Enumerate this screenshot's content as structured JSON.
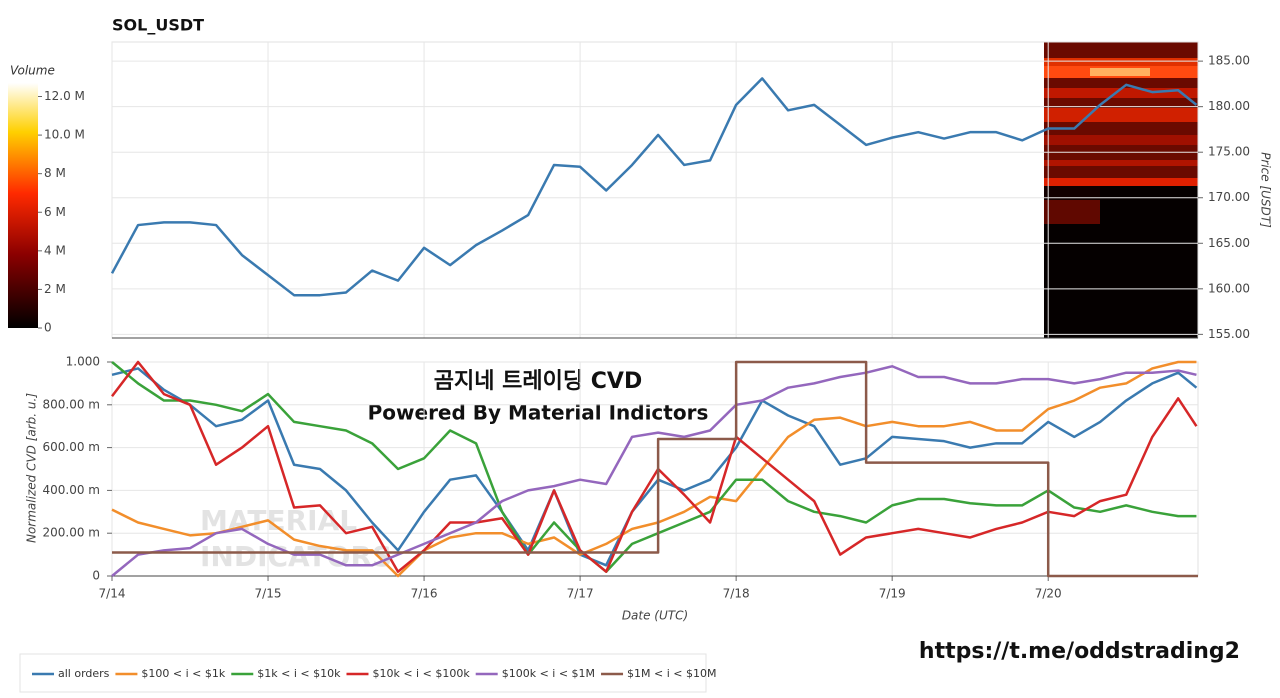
{
  "chart_data": [
    {
      "type": "line",
      "title": "SOL_USDT",
      "y_label": "Price [USDT]",
      "yaxis_side": "right",
      "x": [
        0,
        0.167,
        0.333,
        0.5,
        0.667,
        0.833,
        1,
        1.167,
        1.333,
        1.5,
        1.667,
        1.833,
        2,
        2.167,
        2.333,
        2.5,
        2.667,
        2.833,
        3,
        3.167,
        3.333,
        3.5,
        3.667,
        3.833,
        4,
        4.167,
        4.333,
        4.5,
        4.667,
        4.833,
        5,
        5.167,
        5.333,
        5.5,
        5.667,
        5.833,
        6,
        6.167,
        6.333,
        6.5,
        6.667,
        6.833,
        6.95
      ],
      "series": [
        {
          "name": "price",
          "color": "#3a7ab0",
          "values": [
            161.7,
            167,
            167.3,
            167.3,
            167,
            163.7,
            161.5,
            159.3,
            159.3,
            159.6,
            162,
            160.9,
            164.5,
            162.6,
            164.8,
            166.4,
            168.1,
            173.6,
            173.4,
            170.8,
            173.6,
            176.9,
            173.6,
            174.1,
            180.2,
            183.1,
            179.6,
            180.2,
            178,
            175.8,
            176.6,
            177.2,
            176.5,
            177.2,
            177.2,
            176.3,
            177.6,
            177.6,
            180.2,
            182.4,
            181.6,
            181.8,
            180.2
          ]
        }
      ],
      "xlim": [
        0,
        6.96
      ],
      "xticks": [
        0,
        1,
        2,
        3,
        4,
        5,
        6
      ],
      "ylim": [
        154.6,
        187.1
      ],
      "yticks": [
        {
          "value": 155,
          "label": "155.00"
        },
        {
          "value": 160,
          "label": "160.00"
        },
        {
          "value": 165,
          "label": "165.00"
        },
        {
          "value": 170,
          "label": "170.00"
        },
        {
          "value": 175,
          "label": "175.00"
        },
        {
          "value": 180,
          "label": "180.00"
        },
        {
          "value": 185,
          "label": "185.00"
        }
      ],
      "grid": true,
      "colorbar": {
        "title": "Volume",
        "lim": [
          0,
          12.7
        ],
        "ticks": [
          0,
          {
            "value": 2,
            "label": "2 M"
          },
          {
            "value": 4,
            "label": "4 M"
          },
          {
            "value": 6,
            "label": "6 M"
          },
          {
            "value": 8,
            "label": "8 M"
          },
          {
            "value": 10,
            "label": "10.0 M"
          },
          {
            "value": 12,
            "label": "12.0 M"
          }
        ]
      }
    },
    {
      "type": "line",
      "x_label": "Date (UTC)",
      "y_label": "Normalized CVD [arb. u.]",
      "x": [
        0,
        0.167,
        0.333,
        0.5,
        0.667,
        0.833,
        1,
        1.167,
        1.333,
        1.5,
        1.667,
        1.833,
        2,
        2.167,
        2.333,
        2.5,
        2.667,
        2.833,
        3,
        3.167,
        3.333,
        3.5,
        3.667,
        3.833,
        4,
        4.167,
        4.333,
        4.5,
        4.667,
        4.833,
        5,
        5.167,
        5.333,
        5.5,
        5.667,
        5.833,
        6,
        6.167,
        6.333,
        6.5,
        6.667,
        6.833,
        6.95
      ],
      "series": [
        {
          "name": "all orders",
          "color": "#3a7ab0",
          "values": [
            0.94,
            0.97,
            0.87,
            0.8,
            0.7,
            0.73,
            0.82,
            0.52,
            0.5,
            0.4,
            0.25,
            0.12,
            0.3,
            0.45,
            0.47,
            0.3,
            0.12,
            0.4,
            0.1,
            0.05,
            0.3,
            0.45,
            0.4,
            0.45,
            0.6,
            0.82,
            0.75,
            0.7,
            0.52,
            0.55,
            0.65,
            0.64,
            0.63,
            0.6,
            0.62,
            0.62,
            0.72,
            0.65,
            0.72,
            0.82,
            0.9,
            0.95,
            0.88
          ]
        },
        {
          "name": "$100 < i < $1k",
          "color": "#f28e2b",
          "values": [
            0.31,
            0.25,
            0.22,
            0.19,
            0.2,
            0.23,
            0.26,
            0.17,
            0.14,
            0.12,
            0.12,
            0.0,
            0.12,
            0.18,
            0.2,
            0.2,
            0.15,
            0.18,
            0.1,
            0.15,
            0.22,
            0.25,
            0.3,
            0.37,
            0.35,
            0.5,
            0.65,
            0.73,
            0.74,
            0.7,
            0.72,
            0.7,
            0.7,
            0.72,
            0.68,
            0.68,
            0.78,
            0.82,
            0.88,
            0.9,
            0.97,
            1.0,
            1.0
          ]
        },
        {
          "name": "$1k < i < $10k",
          "color": "#3aa23a",
          "values": [
            1.0,
            0.9,
            0.82,
            0.82,
            0.8,
            0.77,
            0.85,
            0.72,
            0.7,
            0.68,
            0.62,
            0.5,
            0.55,
            0.68,
            0.62,
            0.3,
            0.1,
            0.25,
            0.12,
            0.02,
            0.15,
            0.2,
            0.25,
            0.3,
            0.45,
            0.45,
            0.35,
            0.3,
            0.28,
            0.25,
            0.33,
            0.36,
            0.36,
            0.34,
            0.33,
            0.33,
            0.4,
            0.32,
            0.3,
            0.33,
            0.3,
            0.28,
            0.28
          ]
        },
        {
          "name": "$10k < i < $100k",
          "color": "#d62728",
          "values": [
            0.84,
            1.0,
            0.85,
            0.8,
            0.52,
            0.6,
            0.7,
            0.32,
            0.33,
            0.2,
            0.23,
            0.02,
            0.12,
            0.25,
            0.25,
            0.27,
            0.1,
            0.4,
            0.12,
            0.02,
            0.3,
            0.5,
            0.38,
            0.25,
            0.65,
            0.55,
            0.45,
            0.35,
            0.1,
            0.18,
            0.2,
            0.22,
            0.2,
            0.18,
            0.22,
            0.25,
            0.3,
            0.28,
            0.35,
            0.38,
            0.65,
            0.83,
            0.7
          ]
        },
        {
          "name": "$100k < i < $1M",
          "color": "#9467bd",
          "values": [
            0.0,
            0.1,
            0.12,
            0.13,
            0.2,
            0.22,
            0.15,
            0.1,
            0.1,
            0.05,
            0.05,
            0.1,
            0.15,
            0.2,
            0.25,
            0.35,
            0.4,
            0.42,
            0.45,
            0.43,
            0.65,
            0.67,
            0.65,
            0.68,
            0.8,
            0.82,
            0.88,
            0.9,
            0.93,
            0.95,
            0.98,
            0.93,
            0.93,
            0.9,
            0.9,
            0.92,
            0.92,
            0.9,
            0.92,
            0.95,
            0.95,
            0.96,
            0.94
          ]
        },
        {
          "name": "$1M < i < $10M",
          "color": "#8c5a4a",
          "step": true,
          "values": [
            0.11,
            0.11,
            0.11,
            0.11,
            0.11,
            0.11,
            0.11,
            0.11,
            0.11,
            0.11,
            0.11,
            0.11,
            0.11,
            0.11,
            0.11,
            0.11,
            0.11,
            0.11,
            0.11,
            0.11,
            0.11,
            0.64,
            0.64,
            0.64,
            1.0,
            1.0,
            1.0,
            1.0,
            1.0,
            0.53,
            0.53,
            0.53,
            0.53,
            0.53,
            0.53,
            0.53,
            0,
            0,
            0,
            0,
            0,
            0,
            0
          ]
        }
      ],
      "xlim": [
        0,
        6.96
      ],
      "xticks": [
        {
          "value": 0,
          "label": "7/14"
        },
        {
          "value": 1,
          "label": "7/15"
        },
        {
          "value": 2,
          "label": "7/16"
        },
        {
          "value": 3,
          "label": "7/17"
        },
        {
          "value": 4,
          "label": "7/18"
        },
        {
          "value": 5,
          "label": "7/19"
        },
        {
          "value": 6,
          "label": "7/20"
        }
      ],
      "ylim": [
        0,
        1.0
      ],
      "yticks": [
        0,
        {
          "value": 0.2,
          "label": "200.00 m"
        },
        {
          "value": 0.4,
          "label": "400.00 m"
        },
        {
          "value": 0.6,
          "label": "600.00 m"
        },
        {
          "value": 0.8,
          "label": "800.00 m"
        },
        {
          "value": 1,
          "label": "1.000"
        }
      ],
      "grid": true,
      "legend": "bottom",
      "annotations": [
        "곰지네 트레이딩 CVD",
        "Powered By Material Indictors"
      ],
      "watermark": [
        "MATERIAL",
        "INDICATORS"
      ]
    }
  ],
  "footer_link": "https://t.me/oddstrading2"
}
